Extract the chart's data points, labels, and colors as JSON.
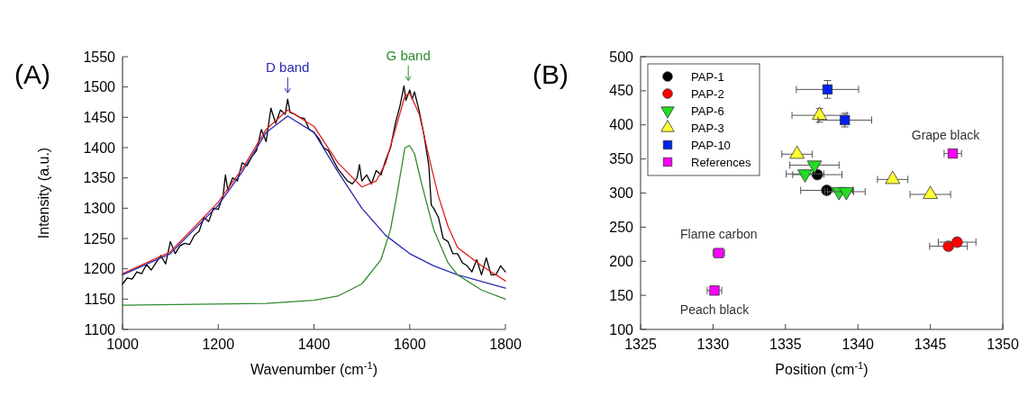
{
  "chart_data": [
    {
      "type": "line",
      "title": "(A)",
      "xlabel": "Wavenumber (cm$^{-1}$)",
      "ylabel": "Intensity (a.u.)",
      "xlim": [
        1000,
        1800
      ],
      "xticks": [
        1000,
        1200,
        1400,
        1600,
        1800
      ],
      "ylim": [
        1100,
        1550
      ],
      "yticks": [
        1100,
        1150,
        1200,
        1250,
        1300,
        1350,
        1400,
        1450,
        1500,
        1550
      ],
      "grid": false,
      "legend": false,
      "annotations": [
        {
          "text": "D band",
          "x": 1345,
          "y": 1480
        },
        {
          "text": "G band",
          "x": 1597,
          "y": 1500
        }
      ],
      "series": [
        {
          "color": "#000000",
          "x": [
            1000,
            1010,
            1020,
            1030,
            1040,
            1050,
            1060,
            1070,
            1080,
            1090,
            1100,
            1110,
            1120,
            1130,
            1140,
            1150,
            1160,
            1170,
            1180,
            1190,
            1200,
            1210,
            1215,
            1220,
            1230,
            1240,
            1250,
            1260,
            1270,
            1280,
            1290,
            1300,
            1310,
            1320,
            1330,
            1340,
            1345,
            1350,
            1360,
            1370,
            1380,
            1390,
            1400,
            1410,
            1420,
            1430,
            1440,
            1450,
            1460,
            1470,
            1480,
            1490,
            1495,
            1500,
            1510,
            1520,
            1530,
            1540,
            1550,
            1560,
            1570,
            1580,
            1588,
            1592,
            1600,
            1605,
            1610,
            1620,
            1630,
            1640,
            1645,
            1650,
            1660,
            1670,
            1680,
            1690,
            1700,
            1710,
            1720,
            1730,
            1740,
            1750,
            1760,
            1770,
            1780,
            1790,
            1800
          ],
          "values": [
            1175,
            1185,
            1183,
            1195,
            1192,
            1207,
            1198,
            1210,
            1222,
            1208,
            1245,
            1225,
            1238,
            1242,
            1240,
            1255,
            1262,
            1285,
            1278,
            1300,
            1298,
            1320,
            1355,
            1330,
            1350,
            1345,
            1375,
            1370,
            1385,
            1395,
            1430,
            1410,
            1465,
            1440,
            1462,
            1455,
            1480,
            1458,
            1455,
            1450,
            1448,
            1430,
            1425,
            1415,
            1400,
            1395,
            1380,
            1365,
            1355,
            1345,
            1340,
            1350,
            1372,
            1345,
            1355,
            1340,
            1362,
            1355,
            1380,
            1400,
            1440,
            1470,
            1502,
            1478,
            1495,
            1480,
            1492,
            1460,
            1420,
            1370,
            1305,
            1300,
            1285,
            1250,
            1245,
            1225,
            1225,
            1210,
            1205,
            1195,
            1215,
            1190,
            1218,
            1190,
            1190,
            1205,
            1195
          ]
        },
        {
          "color": "#e02020",
          "x": [
            1000,
            1100,
            1200,
            1250,
            1300,
            1345,
            1400,
            1450,
            1500,
            1530,
            1550,
            1570,
            1590,
            1600,
            1620,
            1640,
            1660,
            1680,
            1700,
            1750,
            1800
          ],
          "values": [
            1192,
            1228,
            1310,
            1365,
            1430,
            1462,
            1435,
            1375,
            1335,
            1345,
            1375,
            1430,
            1485,
            1490,
            1455,
            1385,
            1320,
            1270,
            1235,
            1205,
            1180
          ]
        },
        {
          "color": "#2a2ab0",
          "x": [
            1000,
            1100,
            1200,
            1250,
            1300,
            1345,
            1400,
            1450,
            1500,
            1550,
            1600,
            1650,
            1700,
            1800
          ],
          "values": [
            1190,
            1225,
            1305,
            1360,
            1425,
            1452,
            1425,
            1360,
            1300,
            1255,
            1225,
            1205,
            1190,
            1168
          ]
        },
        {
          "color": "#2e8b2e",
          "x": [
            1000,
            1300,
            1400,
            1450,
            1500,
            1540,
            1560,
            1575,
            1590,
            1600,
            1610,
            1625,
            1650,
            1680,
            1700,
            1750,
            1800
          ],
          "values": [
            1140,
            1143,
            1148,
            1155,
            1175,
            1215,
            1265,
            1330,
            1400,
            1403,
            1390,
            1340,
            1265,
            1210,
            1190,
            1165,
            1150
          ]
        }
      ]
    },
    {
      "type": "scatter",
      "title": "(B)",
      "xlabel": "Position (cm$^{-1}$)",
      "xlim": [
        1325,
        1350
      ],
      "xticks": [
        1325,
        1330,
        1335,
        1340,
        1345,
        1350
      ],
      "ylim": [
        100,
        500
      ],
      "yticks": [
        100,
        150,
        200,
        250,
        300,
        350,
        400,
        450,
        500
      ],
      "grid": false,
      "legend": "top left",
      "annotations": [
        {
          "text": "Grape black",
          "x": 1346.55,
          "y": 358
        },
        {
          "text": "Flame carbon",
          "x": 1330.4,
          "y": 212
        },
        {
          "text": "Peach black",
          "x": 1330.1,
          "y": 157
        }
      ],
      "series": [
        {
          "name": "PAP-1",
          "color": "#000000",
          "marker": "circle",
          "x": [
            1337.2,
            1337.85
          ],
          "values": [
            327,
            304
          ],
          "xerrors": [
            1.7,
            1.8
          ]
        },
        {
          "name": "PAP-2",
          "color": "#ff0000",
          "marker": "circle",
          "x": [
            1346.25,
            1346.85
          ],
          "values": [
            222,
            228
          ],
          "xerrors": [
            1.3,
            1.3
          ]
        },
        {
          "name": "PAP-6",
          "color": "#22dd22",
          "marker": "triangle-down",
          "x": [
            1337.0,
            1336.35,
            1338.7,
            1339.2
          ],
          "values": [
            341,
            328,
            302,
            302
          ],
          "xerrors": [
            1.7,
            1.3,
            1.0,
            1.3
          ]
        },
        {
          "name": "PAP-3",
          "color": "#ffff33",
          "marker": "triangle",
          "x": [
            1337.35,
            1335.8,
            1342.4,
            1345.0
          ],
          "values": [
            414,
            357,
            320,
            298
          ],
          "xerrors": [
            1.9,
            1.05,
            1.05,
            1.4
          ],
          "errors": [
            10,
            null,
            null,
            null
          ]
        },
        {
          "name": "PAP-10",
          "color": "#0022ee",
          "marker": "square",
          "x": [
            1337.9,
            1339.1
          ],
          "values": [
            452,
            407
          ],
          "xerrors": [
            2.15,
            1.85
          ],
          "errors": [
            13,
            10
          ]
        },
        {
          "name": "References",
          "color": "#ff00ff",
          "marker": "square",
          "x": [
            1346.55,
            1330.4,
            1330.1
          ],
          "values": [
            358,
            212,
            157
          ],
          "xerrors": [
            0.6,
            0.4,
            0.5
          ]
        }
      ]
    }
  ]
}
